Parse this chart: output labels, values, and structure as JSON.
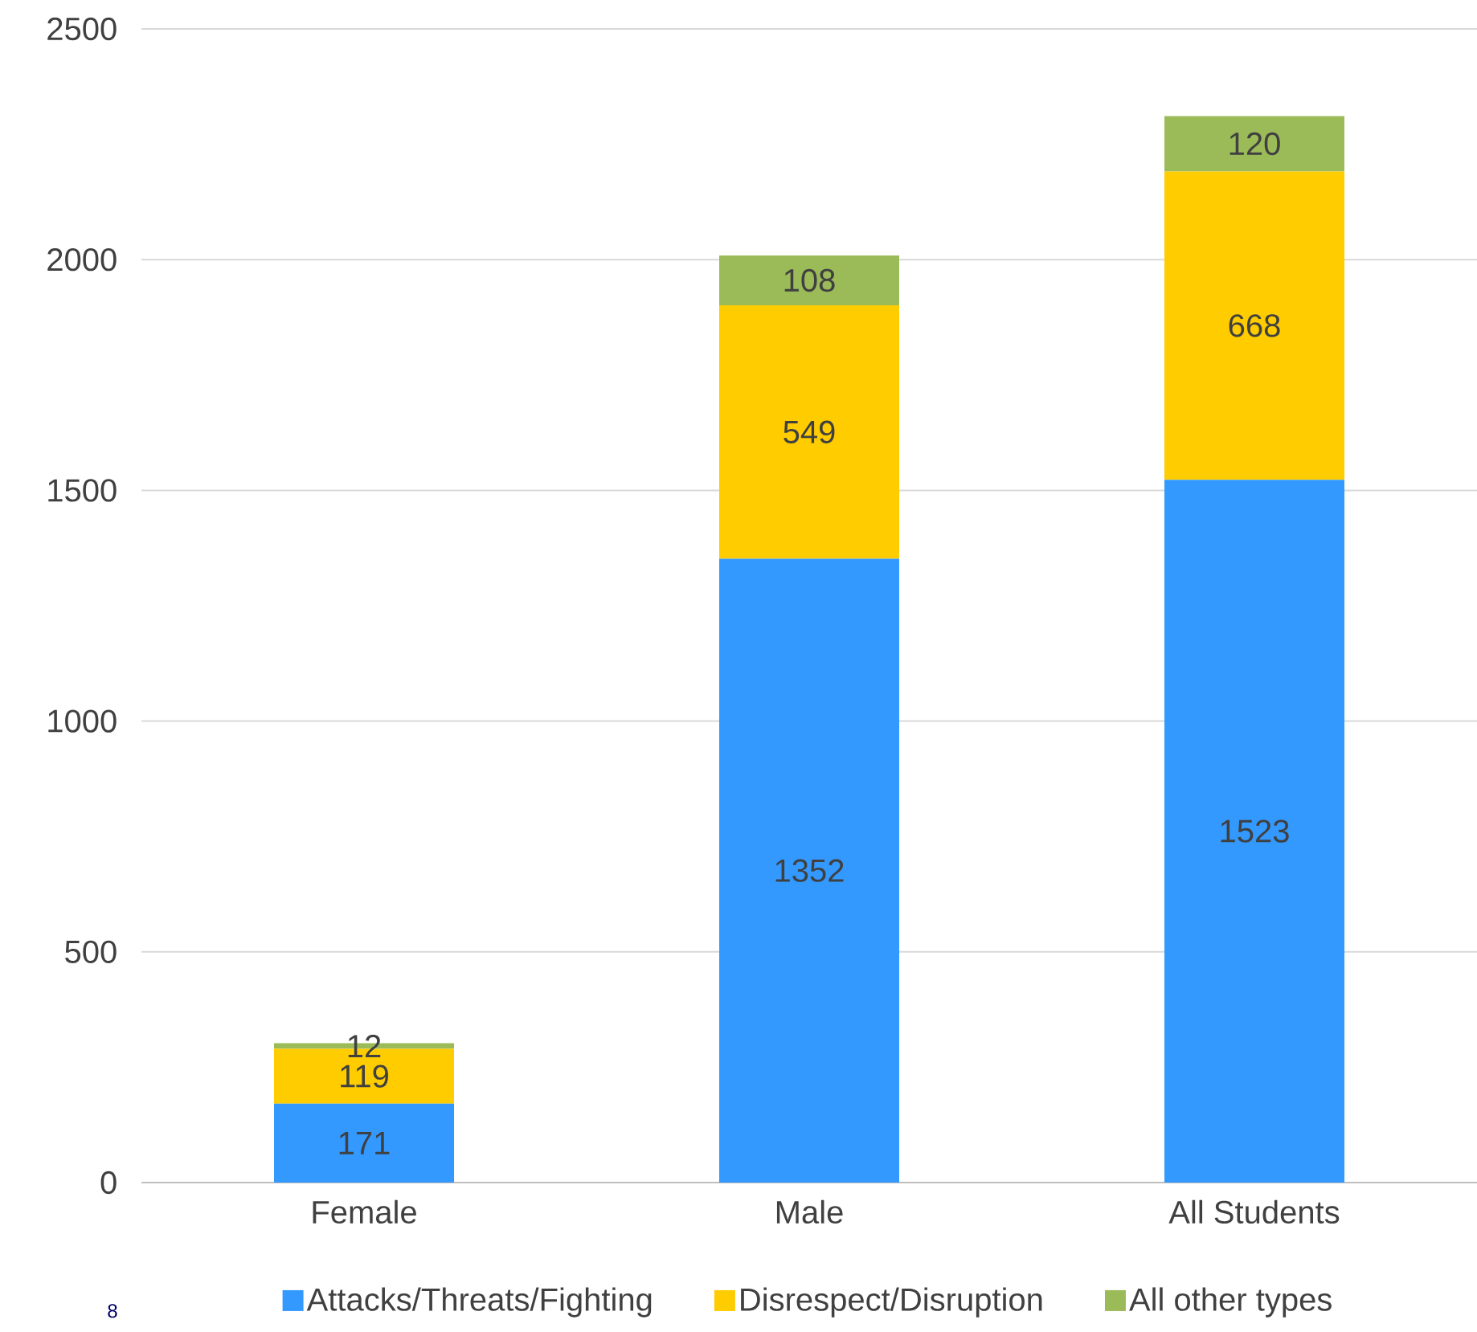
{
  "chart_data": {
    "type": "bar",
    "stacked": true,
    "categories": [
      "Female",
      "Male",
      "All Students"
    ],
    "series": [
      {
        "name": "Attacks/Threats/Fighting",
        "color": "#3399ff",
        "values": [
          171,
          1352,
          1523
        ]
      },
      {
        "name": "Disrespect/Disruption",
        "color": "#ffcc00",
        "values": [
          119,
          549,
          668
        ]
      },
      {
        "name": "All other types",
        "color": "#9bbb59",
        "values": [
          12,
          108,
          120
        ]
      }
    ],
    "ylim": [
      0,
      2500
    ],
    "yticks": [
      0,
      500,
      1000,
      1500,
      2000,
      2500
    ],
    "grid": "y",
    "legend": "bottom",
    "data_labels": true,
    "annotations": [
      "8"
    ]
  }
}
